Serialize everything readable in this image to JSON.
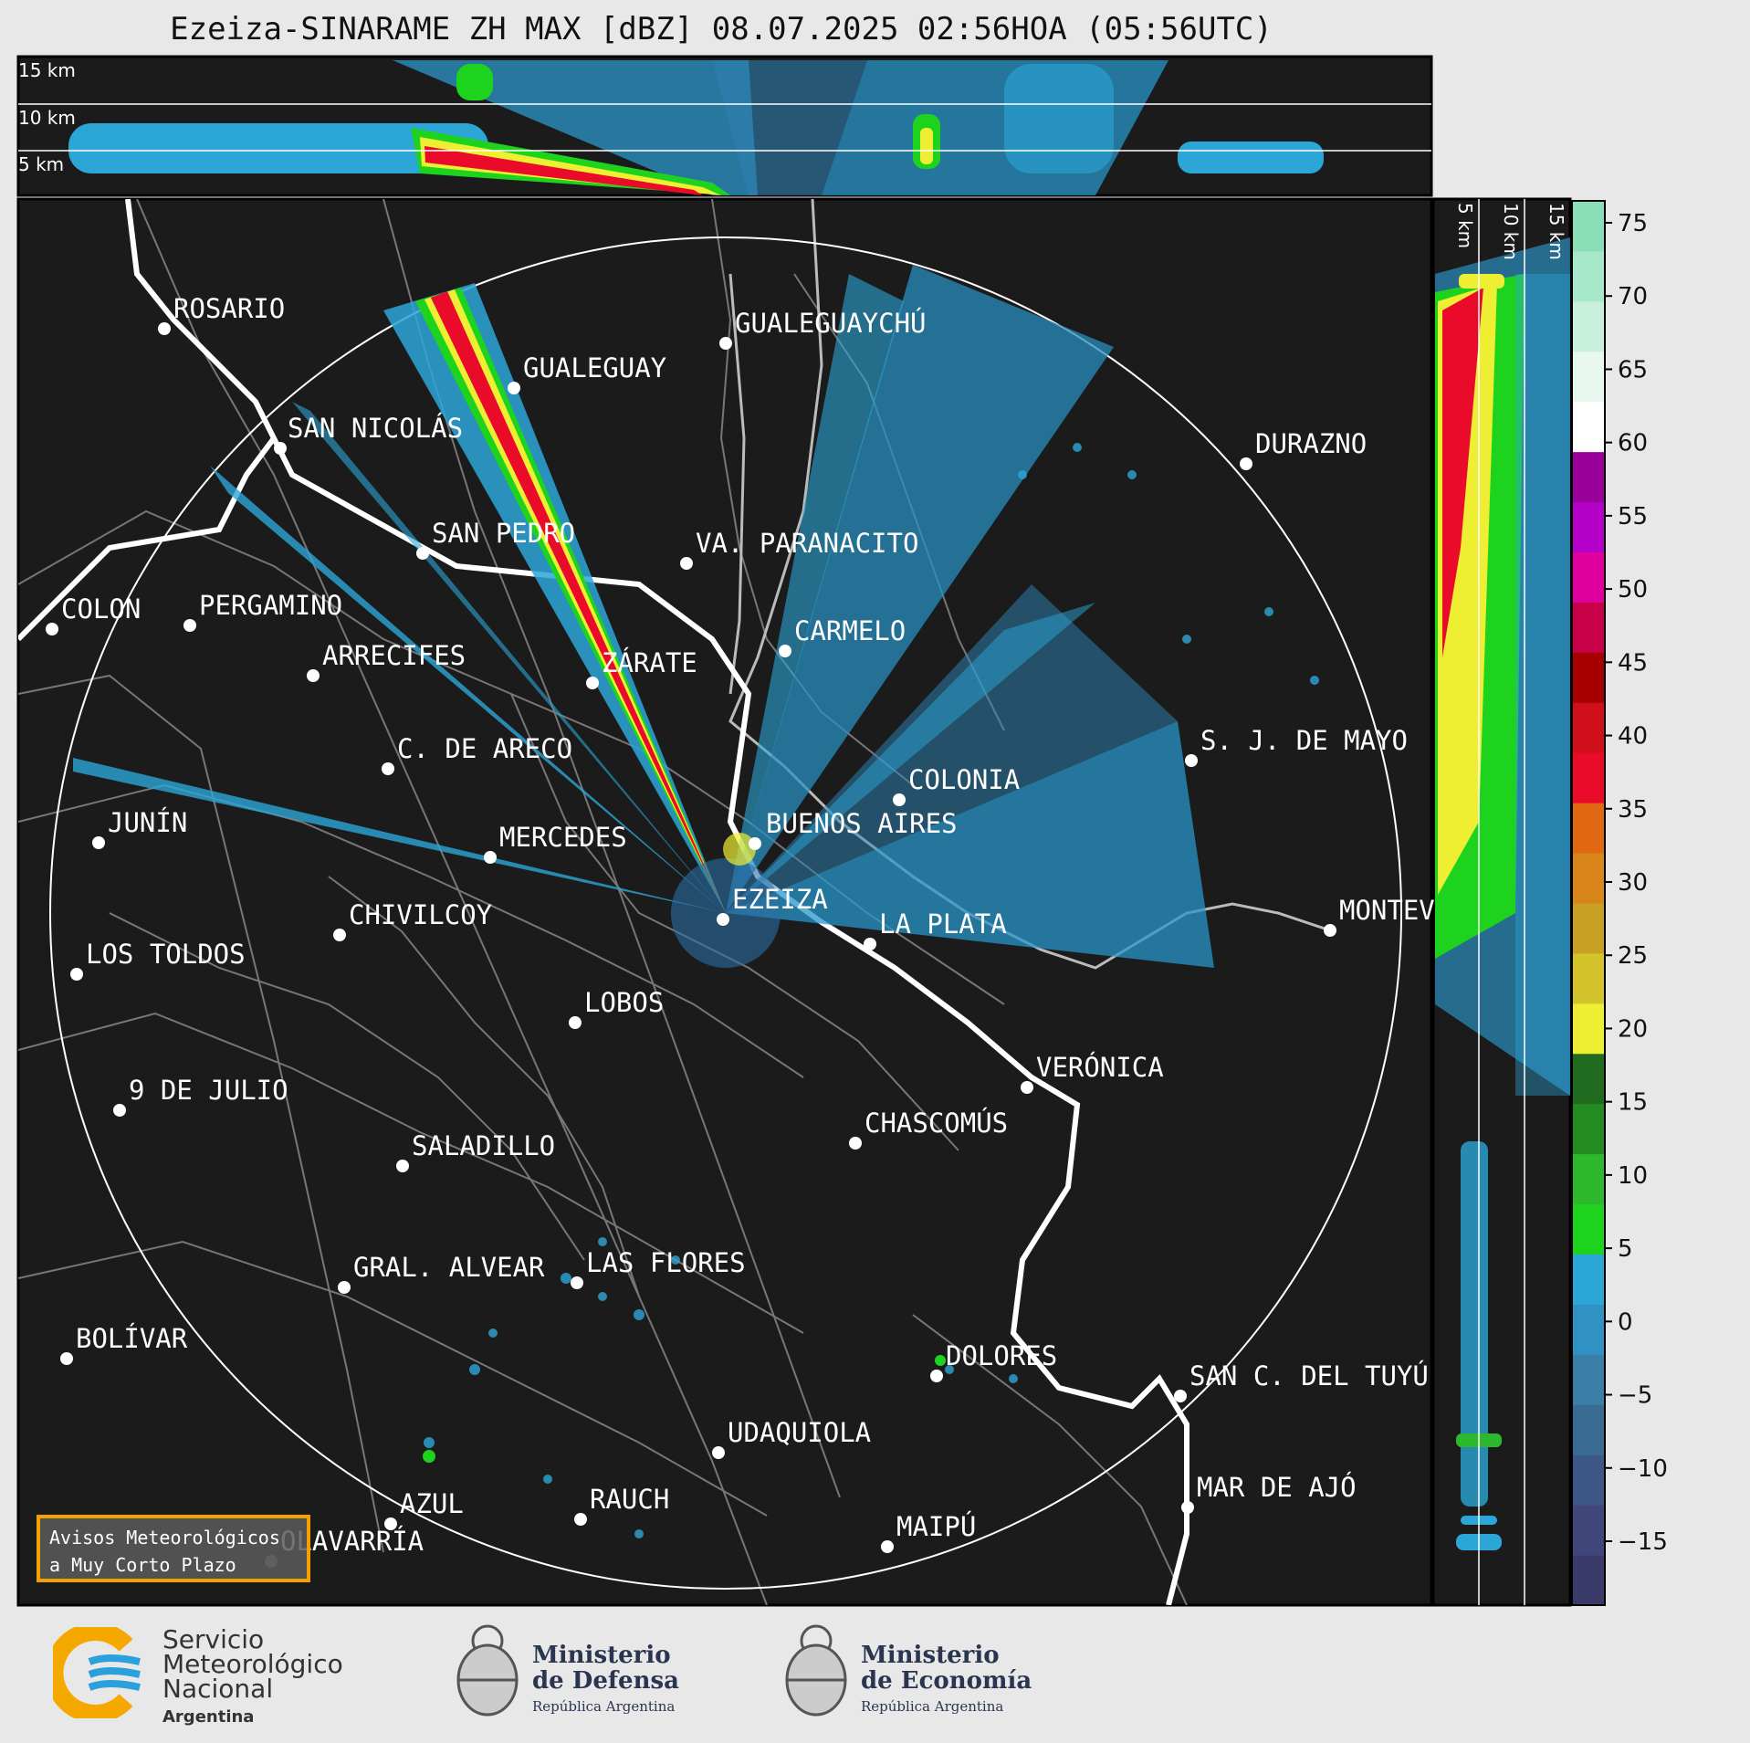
{
  "title": "Ezeiza-SINARAME ZH MAX [dBZ] 08.07.2025 02:56HOA (05:56UTC)",
  "top_panel_labels": [
    "15 km",
    "10 km",
    "5 km"
  ],
  "side_panel_labels": [
    "5 km",
    "10 km",
    "15 km"
  ],
  "colorbar": {
    "ticks": [
      "75",
      "70",
      "65",
      "60",
      "55",
      "50",
      "45",
      "40",
      "35",
      "30",
      "25",
      "20",
      "15",
      "10",
      "5",
      "0",
      "−5",
      "−10",
      "−15"
    ],
    "colors": [
      "#3b3b6b",
      "#41467a",
      "#3d5887",
      "#3a6b93",
      "#3a7fa8",
      "#2f92c3",
      "#2ca6d7",
      "#1ed31e",
      "#2db82d",
      "#228b22",
      "#206b20",
      "#eeee33",
      "#d2c42a",
      "#c8a024",
      "#d8861a",
      "#e06812",
      "#ea0b2a",
      "#cf0f1a",
      "#a80000",
      "#c80048",
      "#e000a0",
      "#b400c8",
      "#9a009a",
      "#ffffff",
      "#e8f8ef",
      "#c9f0dc",
      "#a8e8ca",
      "#8adfb8"
    ]
  },
  "map": {
    "range_ring": "circle",
    "cities": [
      {
        "name": "ROSARIO"
      },
      {
        "name": "GUALEGUAYCHÚ"
      },
      {
        "name": "GUALEGUAY"
      },
      {
        "name": "SAN NICOLÁS"
      },
      {
        "name": "DURAZNO"
      },
      {
        "name": "SAN PEDRO"
      },
      {
        "name": "VA. PARANACITO"
      },
      {
        "name": "COLON"
      },
      {
        "name": "PERGAMINO"
      },
      {
        "name": "CARMELO"
      },
      {
        "name": "ARRECIFES"
      },
      {
        "name": "ZÁRATE"
      },
      {
        "name": "S. J. DE MAYO"
      },
      {
        "name": "C. DE ARECO"
      },
      {
        "name": "COLONIA"
      },
      {
        "name": "JUNÍN"
      },
      {
        "name": "BUENOS AIRES"
      },
      {
        "name": "MERCEDES"
      },
      {
        "name": "EZEIZA"
      },
      {
        "name": "MONTEV"
      },
      {
        "name": "CHIVILCOY"
      },
      {
        "name": "LA PLATA"
      },
      {
        "name": "LOS TOLDOS"
      },
      {
        "name": "LOBOS"
      },
      {
        "name": "VERÓNICA"
      },
      {
        "name": "9 DE JULIO"
      },
      {
        "name": "CHASCOMÚS"
      },
      {
        "name": "SALADILLO"
      },
      {
        "name": "GRAL. ALVEAR"
      },
      {
        "name": "LAS FLORES"
      },
      {
        "name": "BOLÍVAR"
      },
      {
        "name": "DOLORES"
      },
      {
        "name": "SAN C. DEL TUYÚ"
      },
      {
        "name": "UDAQUIOLA"
      },
      {
        "name": "MAR DE AJÓ"
      },
      {
        "name": "AZUL"
      },
      {
        "name": "RAUCH"
      },
      {
        "name": "MAIPÚ"
      },
      {
        "name": "OLAVARRÍA"
      }
    ]
  },
  "warning_box": {
    "line1": "Avisos Meteorológicos",
    "line2": "a Muy Corto Plazo"
  },
  "logos": {
    "smn": {
      "line1": "Servicio",
      "line2": "Meteorológico",
      "line3": "Nacional",
      "line4": "Argentina"
    },
    "defensa": {
      "line1": "Ministerio",
      "line2": "de Defensa",
      "line3": "República Argentina"
    },
    "economia": {
      "line1": "Ministerio",
      "line2": "de Economía",
      "line3": "República Argentina"
    }
  }
}
